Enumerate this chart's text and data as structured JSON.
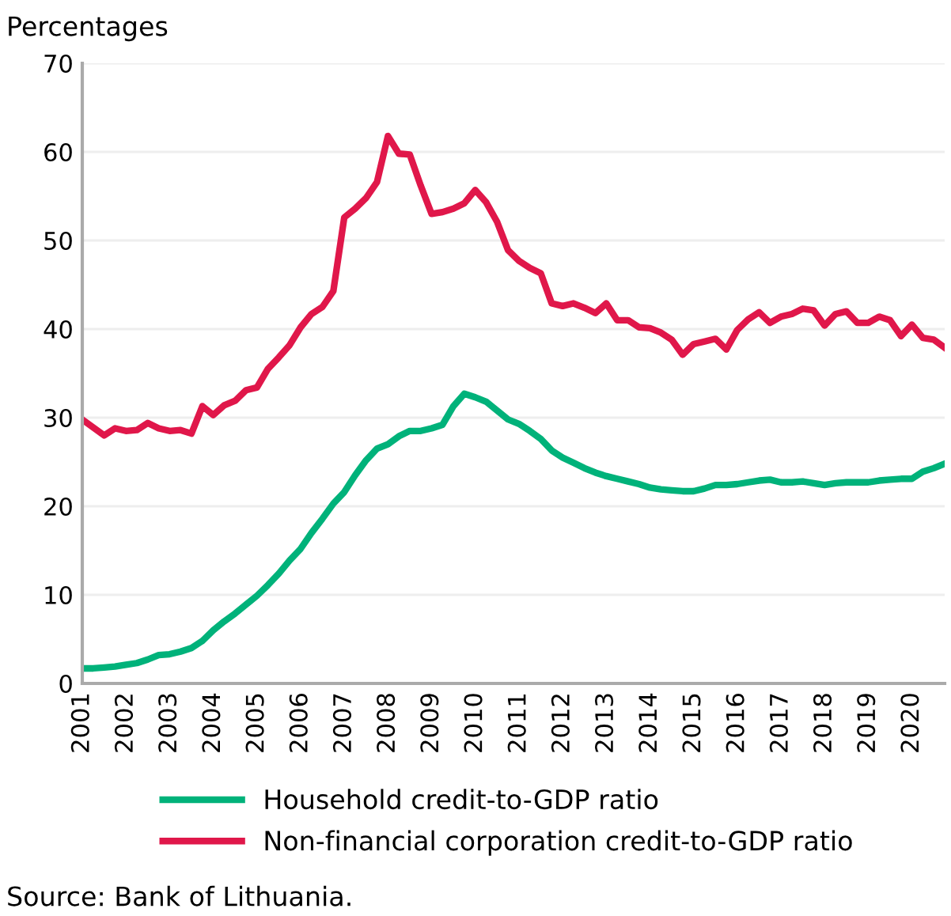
{
  "chart_data": {
    "type": "line",
    "ylabel": "Percentages",
    "x": [
      2001,
      2001.25,
      2001.5,
      2001.75,
      2002,
      2002.25,
      2002.5,
      2002.75,
      2003,
      2003.25,
      2003.5,
      2003.75,
      2004,
      2004.25,
      2004.5,
      2004.75,
      2005,
      2005.25,
      2005.5,
      2005.75,
      2006,
      2006.25,
      2006.5,
      2006.75,
      2007,
      2007.25,
      2007.5,
      2007.75,
      2008,
      2008.25,
      2008.5,
      2008.75,
      2009,
      2009.25,
      2009.5,
      2009.75,
      2010,
      2010.25,
      2010.5,
      2010.75,
      2011,
      2011.25,
      2011.5,
      2011.75,
      2012,
      2012.25,
      2012.5,
      2012.75,
      2013,
      2013.25,
      2013.5,
      2013.75,
      2014,
      2014.25,
      2014.5,
      2014.75,
      2015,
      2015.25,
      2015.5,
      2015.75,
      2016,
      2016.25,
      2016.5,
      2016.75,
      2017,
      2017.25,
      2017.5,
      2017.75,
      2018,
      2018.25,
      2018.5,
      2018.75,
      2019,
      2019.25,
      2019.5,
      2019.75,
      2020,
      2020.25,
      2020.5,
      2020.75
    ],
    "series": [
      {
        "name": "Household credit-to-GDP ratio",
        "color": "#00b27a",
        "values": [
          1.7,
          1.7,
          1.8,
          1.9,
          2.1,
          2.3,
          2.7,
          3.2,
          3.3,
          3.6,
          4.0,
          4.8,
          6.0,
          7.0,
          7.9,
          8.9,
          9.9,
          11.1,
          12.4,
          13.9,
          15.2,
          17.0,
          18.6,
          20.3,
          21.6,
          23.5,
          25.2,
          26.5,
          27.0,
          27.9,
          28.5,
          28.5,
          28.8,
          29.2,
          31.3,
          32.7,
          32.3,
          31.8,
          30.8,
          29.8,
          29.3,
          28.5,
          27.6,
          26.3,
          25.5,
          24.9,
          24.3,
          23.8,
          23.4,
          23.1,
          22.8,
          22.5,
          22.1,
          21.9,
          21.8,
          21.7,
          21.7,
          22.0,
          22.4,
          22.4,
          22.5,
          22.7,
          22.9,
          23.0,
          22.7,
          22.7,
          22.8,
          22.6,
          22.4,
          22.6,
          22.7,
          22.7,
          22.7,
          22.9,
          23.0,
          23.1,
          23.1,
          23.9,
          24.3,
          24.8
        ]
      },
      {
        "name": "Non-financial corporation credit-to-GDP ratio",
        "color": "#e0174a",
        "values": [
          29.8,
          28.9,
          28.0,
          28.8,
          28.5,
          28.6,
          29.4,
          28.8,
          28.5,
          28.6,
          28.2,
          31.3,
          30.3,
          31.4,
          31.9,
          33.1,
          33.4,
          35.5,
          36.8,
          38.2,
          40.2,
          41.7,
          42.5,
          44.3,
          52.6,
          53.6,
          54.8,
          56.6,
          61.8,
          59.8,
          59.7,
          56.2,
          53.0,
          53.2,
          53.6,
          54.2,
          55.7,
          54.3,
          52.1,
          48.9,
          47.7,
          46.9,
          46.3,
          42.9,
          42.6,
          42.9,
          42.4,
          41.8,
          42.9,
          41.0,
          41.0,
          40.2,
          40.1,
          39.6,
          38.8,
          37.1,
          38.3,
          38.6,
          38.9,
          37.7,
          39.9,
          41.1,
          41.9,
          40.7,
          41.4,
          41.7,
          42.3,
          42.1,
          40.4,
          41.7,
          42.0,
          40.7,
          40.7,
          41.4,
          41.0,
          39.2,
          40.5,
          39.0,
          38.8,
          37.9
        ]
      }
    ],
    "xlim": [
      2001,
      2020.75
    ],
    "xticks": [
      2001,
      2002,
      2003,
      2004,
      2005,
      2006,
      2007,
      2008,
      2009,
      2010,
      2011,
      2012,
      2013,
      2014,
      2015,
      2016,
      2017,
      2018,
      2019,
      2020
    ],
    "ylim": [
      0,
      70
    ],
    "yticks": [
      0,
      10,
      20,
      30,
      40,
      50,
      60,
      70
    ],
    "grid": "y",
    "legend": "bottom",
    "marker": "none",
    "line_style": "solid",
    "annotations": [
      "Source: Bank of Lithuania."
    ]
  }
}
